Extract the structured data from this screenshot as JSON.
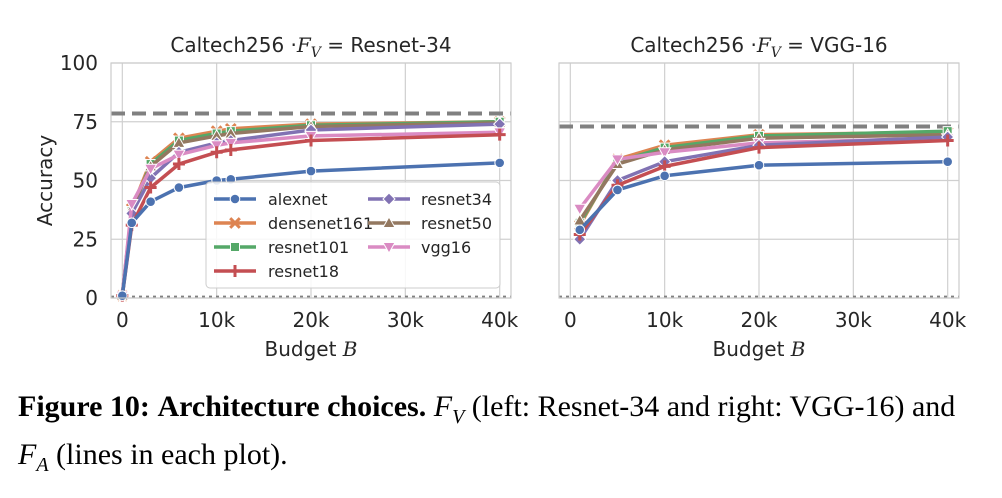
{
  "figure": {
    "caption": {
      "label": "Figure 10:",
      "bold_text": "Architecture choices.",
      "fv_symbol": "F",
      "fv_sub": "V",
      "text_after_fv": "(left: Resnet-34 and right: VGG-16) and",
      "fa_symbol": "F",
      "fa_sub": "A",
      "text_after_fa": "(lines in each plot)."
    }
  },
  "chart_data": [
    {
      "type": "line",
      "title_prefix": "Caltech256 ·",
      "title_var": "F",
      "title_sub": "V",
      "title_suffix": "= Resnet-34",
      "xlabel": "Budget",
      "xlabel_var": "B",
      "ylabel": "Accuracy",
      "xlim": [
        -1200,
        41200
      ],
      "ylim": [
        0,
        100
      ],
      "xticks": [
        0,
        10000,
        20000,
        30000,
        40000
      ],
      "xtick_labels": [
        "0",
        "10k",
        "20k",
        "30k",
        "40k"
      ],
      "yticks": [
        0,
        25,
        50,
        75,
        100
      ],
      "ytick_labels": [
        "0",
        "25",
        "50",
        "75",
        "100"
      ],
      "grid": true,
      "legend_position": "lower-right",
      "hlines": [
        {
          "y": 78.5,
          "style": "dashed",
          "color": "#808080"
        },
        {
          "y": 0.5,
          "style": "dotted",
          "color": "#808080"
        }
      ],
      "x": [
        0,
        1000,
        3000,
        6000,
        10000,
        11500,
        20000,
        40000
      ],
      "series": [
        {
          "name": "densenet161",
          "color": "#dd8452",
          "marker": "x",
          "values": [
            1,
            38,
            58,
            68,
            71,
            72,
            74,
            75
          ]
        },
        {
          "name": "resnet101",
          "color": "#55a868",
          "marker": "s",
          "values": [
            1,
            37,
            57,
            67,
            70,
            71,
            73.5,
            75
          ]
        },
        {
          "name": "resnet50",
          "color": "#937860",
          "marker": "^",
          "values": [
            1,
            38,
            56,
            66,
            69,
            70,
            73,
            74.5
          ]
        },
        {
          "name": "resnet34",
          "color": "#8172b3",
          "marker": "D",
          "values": [
            1,
            36,
            51,
            62,
            66,
            67,
            71.5,
            74
          ]
        },
        {
          "name": "vgg16",
          "color": "#da8bc3",
          "marker": "v",
          "values": [
            1,
            40,
            55,
            61,
            65,
            66,
            69,
            70.5
          ]
        },
        {
          "name": "resnet18",
          "color": "#c44e52",
          "marker": "+",
          "values": [
            1,
            31,
            47,
            57,
            62,
            63,
            67,
            69.5
          ]
        },
        {
          "name": "alexnet",
          "color": "#4c72b0",
          "marker": "o",
          "values": [
            1,
            32,
            41,
            47,
            50,
            50.5,
            54,
            57.5
          ]
        }
      ],
      "legend_order": [
        "alexnet",
        "densenet161",
        "resnet101",
        "resnet18",
        "resnet34",
        "resnet50",
        "vgg16"
      ]
    },
    {
      "type": "line",
      "title_prefix": "Caltech256 ·",
      "title_var": "F",
      "title_sub": "V",
      "title_suffix": "= VGG-16",
      "xlabel": "Budget",
      "xlabel_var": "B",
      "ylabel": "",
      "xlim": [
        -1200,
        41200
      ],
      "ylim": [
        0,
        100
      ],
      "xticks": [
        0,
        10000,
        20000,
        30000,
        40000
      ],
      "xtick_labels": [
        "0",
        "10k",
        "20k",
        "30k",
        "40k"
      ],
      "yticks": [
        0,
        25,
        50,
        75,
        100
      ],
      "ytick_labels": [],
      "grid": true,
      "legend_position": "none",
      "hlines": [
        {
          "y": 73,
          "style": "dashed",
          "color": "#808080"
        },
        {
          "y": 0.5,
          "style": "dotted",
          "color": "#808080"
        }
      ],
      "x": [
        1000,
        5000,
        10000,
        20000,
        40000
      ],
      "series": [
        {
          "name": "densenet161",
          "color": "#dd8452",
          "marker": "x",
          "values": [
            31,
            59,
            65,
            69.5,
            70.5
          ]
        },
        {
          "name": "resnet101",
          "color": "#55a868",
          "marker": "s",
          "values": [
            32,
            58,
            64,
            69,
            71
          ]
        },
        {
          "name": "resnet50",
          "color": "#937860",
          "marker": "^",
          "values": [
            33,
            57,
            63,
            68,
            69.5
          ]
        },
        {
          "name": "vgg16",
          "color": "#da8bc3",
          "marker": "v",
          "values": [
            38,
            59,
            62,
            66,
            68
          ]
        },
        {
          "name": "resnet34",
          "color": "#8172b3",
          "marker": "D",
          "values": [
            25,
            50,
            58,
            65,
            68.5
          ]
        },
        {
          "name": "resnet18",
          "color": "#c44e52",
          "marker": "+",
          "values": [
            27,
            48,
            56,
            64,
            67
          ]
        },
        {
          "name": "alexnet",
          "color": "#4c72b0",
          "marker": "o",
          "values": [
            29,
            46,
            52,
            56.5,
            58
          ]
        }
      ]
    }
  ]
}
